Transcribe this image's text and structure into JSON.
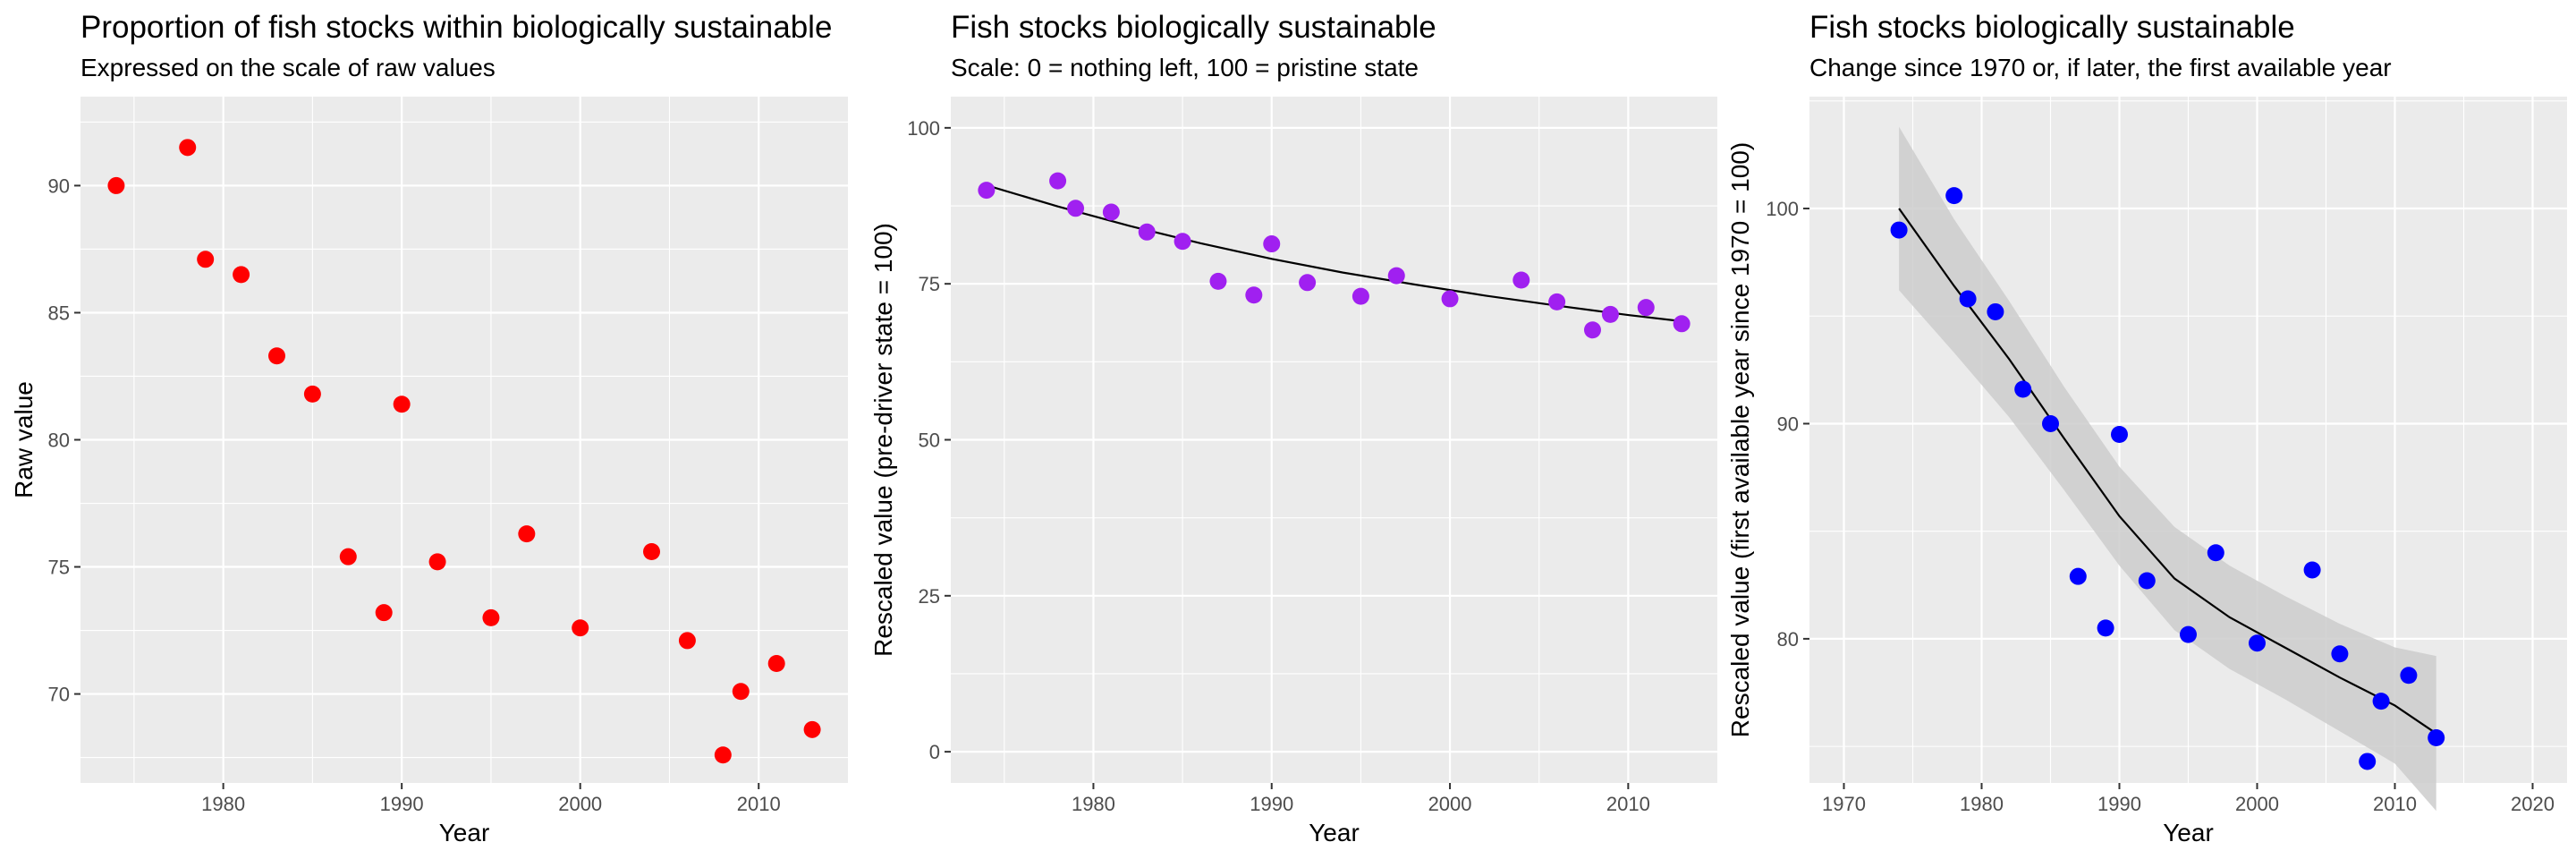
{
  "colors": {
    "panel_bg": "#EBEBEB",
    "grid": "#FFFFFF",
    "tick_text": "#4D4D4D",
    "ribbon": "#CCCCCC",
    "fit_line": "#000000"
  },
  "chart_data": [
    {
      "type": "scatter",
      "title": "Proportion of fish stocks within biologically sustainable",
      "subtitle": "Expressed on the scale of raw values",
      "xlabel": "Year",
      "ylabel": "Raw value",
      "xlim": [
        1972,
        2015
      ],
      "ylim": [
        66.5,
        93.5
      ],
      "x_ticks": [
        1980,
        1990,
        2000,
        2010
      ],
      "x_tick_labels": [
        "1980",
        "1990",
        "2000",
        "2010"
      ],
      "y_ticks": [
        70,
        75,
        80,
        85,
        90
      ],
      "y_tick_labels": [
        "70",
        "75",
        "80",
        "85",
        "90"
      ],
      "point_color": "#FF0000",
      "grid": true,
      "points": [
        {
          "x": 1974,
          "y": 90.0
        },
        {
          "x": 1978,
          "y": 91.5
        },
        {
          "x": 1979,
          "y": 87.1
        },
        {
          "x": 1981,
          "y": 86.5
        },
        {
          "x": 1983,
          "y": 83.3
        },
        {
          "x": 1985,
          "y": 81.8
        },
        {
          "x": 1987,
          "y": 75.4
        },
        {
          "x": 1989,
          "y": 73.2
        },
        {
          "x": 1990,
          "y": 81.4
        },
        {
          "x": 1992,
          "y": 75.2
        },
        {
          "x": 1995,
          "y": 73.0
        },
        {
          "x": 1997,
          "y": 76.3
        },
        {
          "x": 2000,
          "y": 72.6
        },
        {
          "x": 2004,
          "y": 75.6
        },
        {
          "x": 2006,
          "y": 72.1
        },
        {
          "x": 2008,
          "y": 67.6
        },
        {
          "x": 2009,
          "y": 70.1
        },
        {
          "x": 2011,
          "y": 71.2
        },
        {
          "x": 2013,
          "y": 68.6
        }
      ]
    },
    {
      "type": "scatter",
      "title": "Fish stocks biologically sustainable",
      "subtitle": "Scale: 0 = nothing left, 100 = pristine state",
      "xlabel": "Year",
      "ylabel": "Rescaled value (pre-driver state = 100)",
      "xlim": [
        1972,
        2015
      ],
      "ylim": [
        -5,
        105
      ],
      "x_ticks": [
        1980,
        1990,
        2000,
        2010
      ],
      "x_tick_labels": [
        "1980",
        "1990",
        "2000",
        "2010"
      ],
      "y_ticks": [
        0,
        25,
        50,
        75,
        100
      ],
      "y_tick_labels": [
        "0",
        "25",
        "50",
        "75",
        "100"
      ],
      "point_color": "#A020F0",
      "grid": true,
      "points": [
        {
          "x": 1974,
          "y": 90.0
        },
        {
          "x": 1978,
          "y": 91.5
        },
        {
          "x": 1979,
          "y": 87.1
        },
        {
          "x": 1981,
          "y": 86.5
        },
        {
          "x": 1983,
          "y": 83.3
        },
        {
          "x": 1985,
          "y": 81.8
        },
        {
          "x": 1987,
          "y": 75.4
        },
        {
          "x": 1989,
          "y": 73.2
        },
        {
          "x": 1990,
          "y": 81.4
        },
        {
          "x": 1992,
          "y": 75.2
        },
        {
          "x": 1995,
          "y": 73.0
        },
        {
          "x": 1997,
          "y": 76.3
        },
        {
          "x": 2000,
          "y": 72.6
        },
        {
          "x": 2004,
          "y": 75.6
        },
        {
          "x": 2006,
          "y": 72.1
        },
        {
          "x": 2008,
          "y": 67.6
        },
        {
          "x": 2009,
          "y": 70.1
        },
        {
          "x": 2011,
          "y": 71.2
        },
        {
          "x": 2013,
          "y": 68.6
        }
      ],
      "fit": [
        {
          "x": 1974,
          "y": 90.8
        },
        {
          "x": 1978,
          "y": 87.4
        },
        {
          "x": 1982,
          "y": 84.3
        },
        {
          "x": 1986,
          "y": 81.5
        },
        {
          "x": 1990,
          "y": 79.0
        },
        {
          "x": 1994,
          "y": 76.8
        },
        {
          "x": 1998,
          "y": 74.9
        },
        {
          "x": 2002,
          "y": 73.1
        },
        {
          "x": 2006,
          "y": 71.5
        },
        {
          "x": 2010,
          "y": 70.0
        },
        {
          "x": 2013,
          "y": 69.0
        }
      ]
    },
    {
      "type": "scatter",
      "title": "Fish stocks biologically sustainable",
      "subtitle": "Change since 1970 or, if later, the first available year",
      "xlabel": "Year",
      "ylabel": "Rescaled value (first available year since 1970 = 100)",
      "xlim": [
        1967.5,
        2022.5
      ],
      "ylim": [
        73.3,
        105.2
      ],
      "x_ticks": [
        1970,
        1980,
        1990,
        2000,
        2010,
        2020
      ],
      "x_tick_labels": [
        "1970",
        "1980",
        "1990",
        "2000",
        "2010",
        "2020"
      ],
      "y_ticks": [
        80,
        90,
        100
      ],
      "y_tick_labels": [
        "80",
        "90",
        "100"
      ],
      "point_color": "#0000FF",
      "grid": true,
      "points": [
        {
          "x": 1974,
          "y": 99.0
        },
        {
          "x": 1978,
          "y": 100.6
        },
        {
          "x": 1979,
          "y": 95.8
        },
        {
          "x": 1981,
          "y": 95.2
        },
        {
          "x": 1983,
          "y": 91.6
        },
        {
          "x": 1985,
          "y": 90.0
        },
        {
          "x": 1987,
          "y": 82.9
        },
        {
          "x": 1989,
          "y": 80.5
        },
        {
          "x": 1990,
          "y": 89.5
        },
        {
          "x": 1992,
          "y": 82.7
        },
        {
          "x": 1995,
          "y": 80.2
        },
        {
          "x": 1997,
          "y": 84.0
        },
        {
          "x": 2000,
          "y": 79.8
        },
        {
          "x": 2004,
          "y": 83.2
        },
        {
          "x": 2006,
          "y": 79.3
        },
        {
          "x": 2008,
          "y": 74.3
        },
        {
          "x": 2009,
          "y": 77.1
        },
        {
          "x": 2011,
          "y": 78.3
        },
        {
          "x": 2013,
          "y": 75.4
        }
      ],
      "fit": [
        {
          "x": 1974,
          "y": 100.0
        },
        {
          "x": 1978,
          "y": 96.4
        },
        {
          "x": 1982,
          "y": 93.0
        },
        {
          "x": 1986,
          "y": 89.3
        },
        {
          "x": 1990,
          "y": 85.7
        },
        {
          "x": 1994,
          "y": 82.8
        },
        {
          "x": 1998,
          "y": 81.0
        },
        {
          "x": 2002,
          "y": 79.6
        },
        {
          "x": 2006,
          "y": 78.2
        },
        {
          "x": 2010,
          "y": 76.9
        },
        {
          "x": 2013,
          "y": 75.6
        }
      ],
      "ribbon_upper": [
        {
          "x": 1974,
          "y": 103.8
        },
        {
          "x": 1978,
          "y": 99.5
        },
        {
          "x": 1982,
          "y": 95.7
        },
        {
          "x": 1986,
          "y": 91.7
        },
        {
          "x": 1990,
          "y": 88.0
        },
        {
          "x": 1994,
          "y": 85.2
        },
        {
          "x": 1998,
          "y": 83.4
        },
        {
          "x": 2002,
          "y": 82.0
        },
        {
          "x": 2006,
          "y": 80.7
        },
        {
          "x": 2010,
          "y": 79.6
        },
        {
          "x": 2013,
          "y": 79.2
        }
      ],
      "ribbon_lower": [
        {
          "x": 1974,
          "y": 96.2
        },
        {
          "x": 1978,
          "y": 93.3
        },
        {
          "x": 1982,
          "y": 90.3
        },
        {
          "x": 1986,
          "y": 86.9
        },
        {
          "x": 1990,
          "y": 83.4
        },
        {
          "x": 1994,
          "y": 80.4
        },
        {
          "x": 1998,
          "y": 78.6
        },
        {
          "x": 2002,
          "y": 77.2
        },
        {
          "x": 2006,
          "y": 75.7
        },
        {
          "x": 2010,
          "y": 74.2
        },
        {
          "x": 2013,
          "y": 72.0
        }
      ]
    }
  ]
}
